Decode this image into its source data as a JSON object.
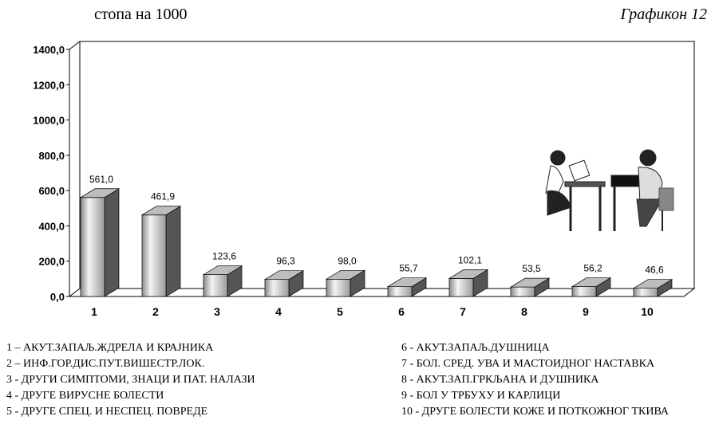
{
  "chart_data": {
    "type": "bar3d",
    "title": "стопа на 1000",
    "subtitle": "Графикон 12",
    "categories": [
      "1",
      "2",
      "3",
      "4",
      "5",
      "6",
      "7",
      "8",
      "9",
      "10"
    ],
    "values": [
      561.0,
      461.9,
      123.6,
      96.3,
      98.0,
      55.7,
      102.1,
      53.5,
      56.2,
      46.6
    ],
    "value_labels": [
      "561,0",
      "461,9",
      "123,6",
      "96,3",
      "98,0",
      "55,7",
      "102,1",
      "53,5",
      "56,2",
      "46,6"
    ],
    "color": "#bdbdbd",
    "ylim": [
      0,
      1400
    ],
    "yticks": [
      {
        "value": 0,
        "label": "0,0"
      },
      {
        "value": 200,
        "label": "200,0"
      },
      {
        "value": 400,
        "label": "400,0"
      },
      {
        "value": 600,
        "label": "600,0"
      },
      {
        "value": 800,
        "label": "800,0"
      },
      {
        "value": 1000,
        "label": "1000,0"
      },
      {
        "value": 1200,
        "label": "1200,0"
      },
      {
        "value": 1400,
        "label": "1400,0"
      }
    ],
    "category_descriptions": [
      "1 – АКУТ.ЗАПАЉ.ЖДРЕЛА И КРАЈНИКА",
      "2 – ИНФ.ГОР.ДИС.ПУТ.ВИШЕСТР.ЛОК.",
      "3 - ДРУГИ СИМПТОМИ, ЗНАЦИ И ПАТ. НАЛАЗИ",
      "4 - ДРУГЕ ВИРУСНЕ БОЛЕСТИ",
      "5 - ДРУГЕ СПЕЦ. И НЕСПЕЦ. ПОВРЕДЕ",
      "6 - АКУТ.ЗАПАЉ.ДУШНИЦА",
      "7 - БОЛ. СРЕД. УВА И МАСТОИДНОГ НАСТАВКА",
      "8 - АКУТ.ЗАП.ГРКЉАНА И ДУШНИКА",
      "9 - БОЛ У ТРБУХУ И КАРЛИЦИ",
      "10 - ДРУГЕ БОЛЕСТИ КОЖЕ И ПОТКОЖНОГ ТКИВА"
    ]
  }
}
